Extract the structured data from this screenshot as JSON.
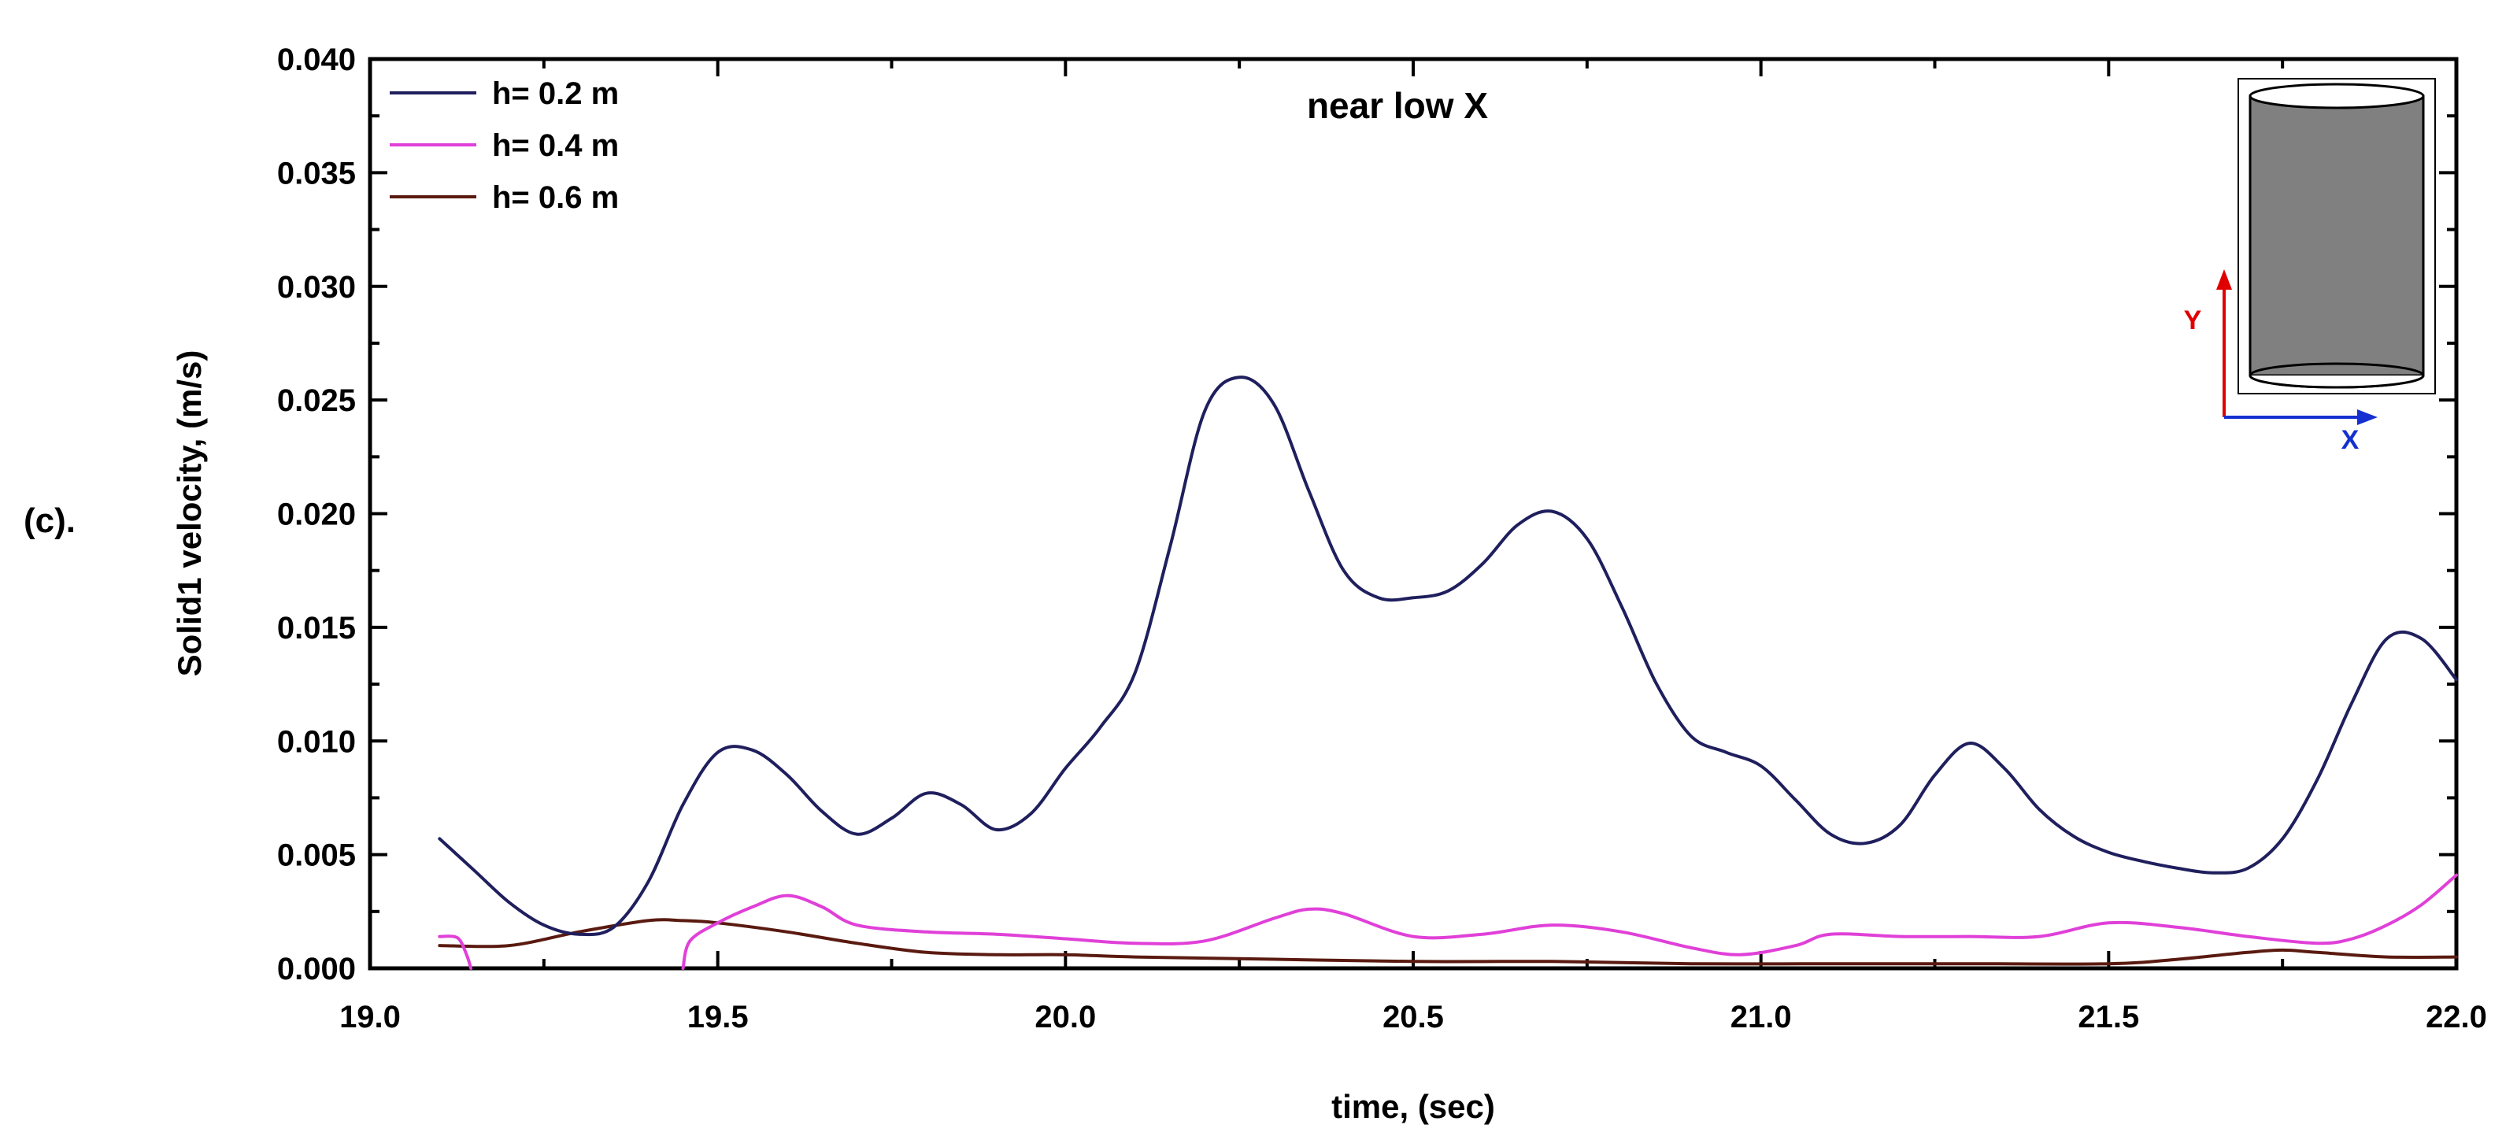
{
  "panel_label": "(c).",
  "chart_data": {
    "type": "line",
    "title": "",
    "annotation": "near low X",
    "xlabel": "time, (sec)",
    "ylabel": "Solid1 velocity, (m/s)",
    "xlim": [
      19.0,
      22.0
    ],
    "ylim": [
      0.0,
      0.04
    ],
    "x_ticks": [
      19.0,
      19.5,
      20.0,
      20.5,
      21.0,
      21.5,
      22.0
    ],
    "x_tick_labels": [
      "19.0",
      "19.5",
      "20.0",
      "20.5",
      "21.0",
      "21.5",
      "22.0"
    ],
    "y_ticks": [
      0.0,
      0.005,
      0.01,
      0.015,
      0.02,
      0.025,
      0.03,
      0.035,
      0.04
    ],
    "y_tick_labels": [
      "0.000",
      "0.005",
      "0.010",
      "0.015",
      "0.020",
      "0.025",
      "0.030",
      "0.035",
      "0.040"
    ],
    "grid": false,
    "legend_position": "top-left",
    "series": [
      {
        "name": "h= 0.2 m",
        "color": "#1f1f5e",
        "points": [
          [
            19.1,
            0.0057
          ],
          [
            19.15,
            0.0043
          ],
          [
            19.2,
            0.0029
          ],
          [
            19.25,
            0.0019
          ],
          [
            19.3,
            0.0015
          ],
          [
            19.35,
            0.0018
          ],
          [
            19.4,
            0.0038
          ],
          [
            19.45,
            0.0072
          ],
          [
            19.5,
            0.0095
          ],
          [
            19.55,
            0.0096
          ],
          [
            19.6,
            0.0085
          ],
          [
            19.65,
            0.0069
          ],
          [
            19.7,
            0.0059
          ],
          [
            19.75,
            0.0066
          ],
          [
            19.8,
            0.0077
          ],
          [
            19.85,
            0.0072
          ],
          [
            19.9,
            0.0061
          ],
          [
            19.95,
            0.0068
          ],
          [
            20.0,
            0.0088
          ],
          [
            20.05,
            0.0106
          ],
          [
            20.1,
            0.013
          ],
          [
            20.15,
            0.0185
          ],
          [
            20.2,
            0.0245
          ],
          [
            20.25,
            0.026
          ],
          [
            20.3,
            0.0248
          ],
          [
            20.35,
            0.021
          ],
          [
            20.4,
            0.0175
          ],
          [
            20.45,
            0.0163
          ],
          [
            20.5,
            0.0163
          ],
          [
            20.55,
            0.0166
          ],
          [
            20.6,
            0.0178
          ],
          [
            20.65,
            0.0195
          ],
          [
            20.7,
            0.0201
          ],
          [
            20.75,
            0.0189
          ],
          [
            20.8,
            0.0159
          ],
          [
            20.85,
            0.0125
          ],
          [
            20.9,
            0.0102
          ],
          [
            20.95,
            0.0095
          ],
          [
            21.0,
            0.0089
          ],
          [
            21.05,
            0.0074
          ],
          [
            21.1,
            0.0059
          ],
          [
            21.15,
            0.0055
          ],
          [
            21.2,
            0.0063
          ],
          [
            21.25,
            0.0085
          ],
          [
            21.3,
            0.0099
          ],
          [
            21.35,
            0.0088
          ],
          [
            21.4,
            0.007
          ],
          [
            21.45,
            0.0058
          ],
          [
            21.5,
            0.0051
          ],
          [
            21.55,
            0.0047
          ],
          [
            21.6,
            0.0044
          ],
          [
            21.65,
            0.0042
          ],
          [
            21.7,
            0.0044
          ],
          [
            21.75,
            0.0057
          ],
          [
            21.8,
            0.0083
          ],
          [
            21.85,
            0.0117
          ],
          [
            21.9,
            0.0145
          ],
          [
            21.95,
            0.0145
          ],
          [
            22.0,
            0.0127
          ]
        ]
      },
      {
        "name": "h= 0.4 m",
        "color": "#e040d8",
        "segments": [
          [
            [
              19.1,
              0.0014
            ],
            [
              19.12,
              0.0014
            ],
            [
              19.13,
              0.0012
            ],
            [
              19.14,
              0.0005
            ],
            [
              19.145,
              0.0
            ]
          ],
          [
            [
              19.45,
              0.0
            ],
            [
              19.46,
              0.0012
            ],
            [
              19.5,
              0.002
            ],
            [
              19.55,
              0.0027
            ],
            [
              19.6,
              0.0032
            ],
            [
              19.65,
              0.0027
            ],
            [
              19.7,
              0.0019
            ],
            [
              19.8,
              0.0016
            ],
            [
              19.9,
              0.0015
            ],
            [
              20.0,
              0.0013
            ],
            [
              20.1,
              0.0011
            ],
            [
              20.2,
              0.0012
            ],
            [
              20.3,
              0.0022
            ],
            [
              20.35,
              0.0026
            ],
            [
              20.4,
              0.0024
            ],
            [
              20.5,
              0.0014
            ],
            [
              20.6,
              0.0015
            ],
            [
              20.7,
              0.0019
            ],
            [
              20.8,
              0.0016
            ],
            [
              20.9,
              0.0009
            ],
            [
              20.97,
              0.0006
            ],
            [
              21.05,
              0.001
            ],
            [
              21.1,
              0.0015
            ],
            [
              21.2,
              0.0014
            ],
            [
              21.3,
              0.0014
            ],
            [
              21.4,
              0.0014
            ],
            [
              21.5,
              0.002
            ],
            [
              21.6,
              0.0018
            ],
            [
              21.7,
              0.0014
            ],
            [
              21.8,
              0.0011
            ],
            [
              21.85,
              0.0013
            ],
            [
              21.9,
              0.0019
            ],
            [
              21.95,
              0.0028
            ],
            [
              22.0,
              0.0041
            ]
          ]
        ]
      },
      {
        "name": "h= 0.6 m",
        "color": "#5a1a10",
        "points": [
          [
            19.1,
            0.001
          ],
          [
            19.2,
            0.001
          ],
          [
            19.3,
            0.0016
          ],
          [
            19.4,
            0.0021
          ],
          [
            19.45,
            0.0021
          ],
          [
            19.5,
            0.002
          ],
          [
            19.6,
            0.0016
          ],
          [
            19.7,
            0.0011
          ],
          [
            19.8,
            0.0007
          ],
          [
            19.9,
            0.0006
          ],
          [
            20.0,
            0.0006
          ],
          [
            20.1,
            0.0005
          ],
          [
            20.3,
            0.0004
          ],
          [
            20.5,
            0.0003
          ],
          [
            20.7,
            0.0003
          ],
          [
            20.9,
            0.0002
          ],
          [
            21.1,
            0.0002
          ],
          [
            21.3,
            0.0002
          ],
          [
            21.5,
            0.0002
          ],
          [
            21.6,
            0.0004
          ],
          [
            21.7,
            0.0007
          ],
          [
            21.75,
            0.0008
          ],
          [
            21.8,
            0.0007
          ],
          [
            21.9,
            0.0005
          ],
          [
            22.0,
            0.0005
          ]
        ]
      }
    ]
  },
  "inset": {
    "y_axis_label": "Y",
    "x_axis_label": "X",
    "y_axis_color": "#e00000",
    "x_axis_color": "#1530d0",
    "cylinder_fill": "#808080"
  }
}
